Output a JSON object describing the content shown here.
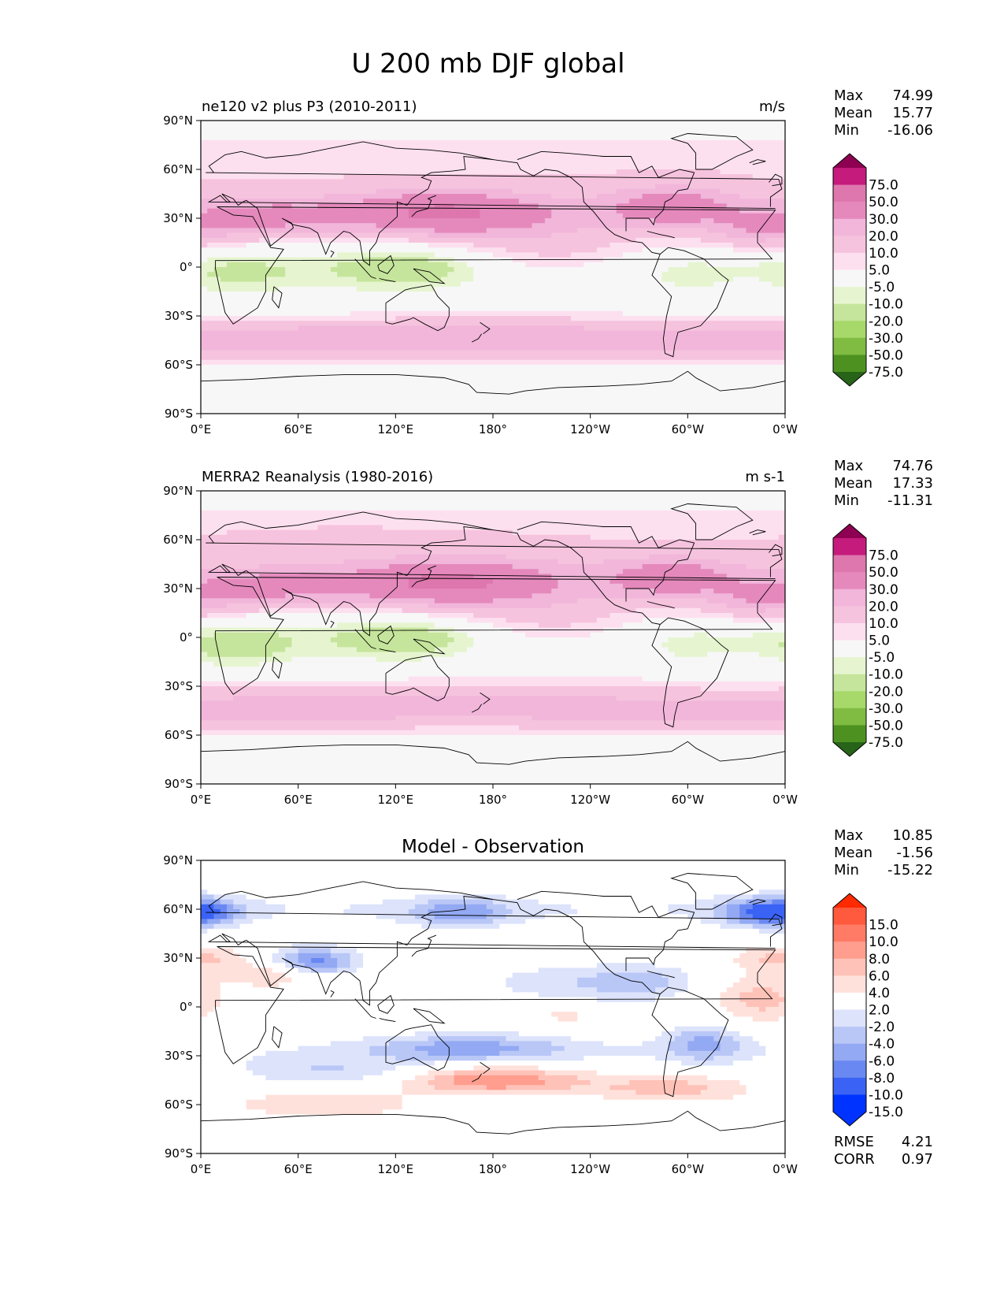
{
  "figure_title": "U 200 mb DJF global",
  "colors": {
    "seq_colors": [
      "#276419",
      "#4d9221",
      "#7fbc41",
      "#a6d96a",
      "#c6e59c",
      "#e6f5d0",
      "#f7f7f7",
      "#fde0ef",
      "#f6c3de",
      "#f1b6da",
      "#e589bd",
      "#de77ae",
      "#c51b7d",
      "#8e0152"
    ],
    "diff_colors": [
      "#0033ff",
      "#3a63f5",
      "#6a88f2",
      "#93a9f3",
      "#b9c7f7",
      "#dce3fb",
      "#ffffff",
      "#ffe1dc",
      "#ffc2b8",
      "#ff9e8e",
      "#ff7b66",
      "#ff5a3e",
      "#ff2a00"
    ],
    "coast": "#000000"
  },
  "chart_data": [
    {
      "type": "heatmap",
      "title": "ne120 v2 plus P3 (2010-2011)",
      "units": "m/s",
      "stats": [
        {
          "label": "Max",
          "value": "74.99"
        },
        {
          "label": "Mean",
          "value": "15.77"
        },
        {
          "label": "Min",
          "value": "-16.06"
        }
      ],
      "colorbar_levels": [
        "75.0",
        "50.0",
        "30.0",
        "20.0",
        "10.0",
        "5.0",
        "-5.0",
        "-10.0",
        "-20.0",
        "-30.0",
        "-50.0",
        "-75.0"
      ],
      "x_ticks": [
        "0°E",
        "60°E",
        "120°E",
        "180°",
        "120°W",
        "60°W",
        "0°W"
      ],
      "y_ticks": [
        "90°N",
        "60°N",
        "30°N",
        "0°",
        "30°S",
        "60°S",
        "90°S"
      ],
      "xlim": [
        0,
        360
      ],
      "ylim": [
        -90,
        90
      ]
    },
    {
      "type": "heatmap",
      "title": "MERRA2 Reanalysis (1980-2016)",
      "units": "m s-1",
      "stats": [
        {
          "label": "Max",
          "value": "74.76"
        },
        {
          "label": "Mean",
          "value": "17.33"
        },
        {
          "label": "Min",
          "value": "-11.31"
        }
      ],
      "colorbar_levels": [
        "75.0",
        "50.0",
        "30.0",
        "20.0",
        "10.0",
        "5.0",
        "-5.0",
        "-10.0",
        "-20.0",
        "-30.0",
        "-50.0",
        "-75.0"
      ],
      "x_ticks": [
        "0°E",
        "60°E",
        "120°E",
        "180°",
        "120°W",
        "60°W",
        "0°W"
      ],
      "y_ticks": [
        "90°N",
        "60°N",
        "30°N",
        "0°",
        "30°S",
        "60°S",
        "90°S"
      ],
      "xlim": [
        0,
        360
      ],
      "ylim": [
        -90,
        90
      ]
    },
    {
      "type": "heatmap",
      "title": "Model - Observation",
      "units": "",
      "stats": [
        {
          "label": "Max",
          "value": "10.85"
        },
        {
          "label": "Mean",
          "value": "-1.56"
        },
        {
          "label": "Min",
          "value": "-15.22"
        }
      ],
      "colorbar_levels": [
        "15.0",
        "10.0",
        "8.0",
        "6.0",
        "4.0",
        "2.0",
        "-2.0",
        "-4.0",
        "-6.0",
        "-8.0",
        "-10.0",
        "-15.0"
      ],
      "x_ticks": [
        "0°E",
        "60°E",
        "120°E",
        "180°",
        "120°W",
        "60°W",
        "0°W"
      ],
      "y_ticks": [
        "90°N",
        "60°N",
        "30°N",
        "0°",
        "30°S",
        "60°S",
        "90°S"
      ],
      "xlim": [
        0,
        360
      ],
      "ylim": [
        -90,
        90
      ],
      "extra_stats": [
        {
          "label": "RMSE",
          "value": "4.21"
        },
        {
          "label": "CORR",
          "value": "0.97"
        }
      ]
    }
  ]
}
